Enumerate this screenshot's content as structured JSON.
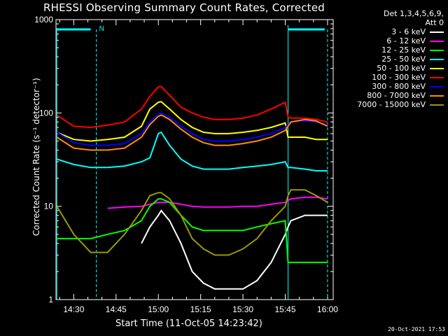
{
  "title": "RHESSI Observing Summary Count Rates, Corrected",
  "ylabel": "Corrected Count Rate (s⁻¹ detector⁻¹)",
  "xlabel": "Start Time (11-Oct-05 14:23:42)",
  "footer": "20-Oct-2021 17:53",
  "legend": {
    "header1": "Det 1,3,4,5,6,9,",
    "header2": "Att 0",
    "items": [
      {
        "label": "3 - 6 keV",
        "color": "#ffffff"
      },
      {
        "label": "6 - 12 keV",
        "color": "#ff00ff"
      },
      {
        "label": "12 - 25 keV",
        "color": "#00ff00"
      },
      {
        "label": "25 - 50 keV",
        "color": "#00ffff"
      },
      {
        "label": "50 - 100 keV",
        "color": "#ffff00"
      },
      {
        "label": "100 - 300 keV",
        "color": "#ff0000"
      },
      {
        "label": "300 - 800 keV",
        "color": "#0000ff"
      },
      {
        "label": "800 - 7000 keV",
        "color": "#ff8c00"
      },
      {
        "label": "7000 - 15000 keV",
        "color": "#999900"
      }
    ]
  },
  "annotation": "N",
  "chart_data": {
    "type": "line",
    "title": "RHESSI Observing Summary Count Rates, Corrected",
    "xlabel": "Start Time (11-Oct-05 14:23:42)",
    "ylabel": "Corrected Count Rate (s⁻¹ detector⁻¹)",
    "yscale": "log",
    "ylim": [
      1,
      1000
    ],
    "xlim": [
      "14:23:42",
      "16:02"
    ],
    "x_ticks": [
      "14:30",
      "14:45",
      "15:00",
      "15:15",
      "15:30",
      "15:45",
      "16:00"
    ],
    "y_ticks": [
      "1",
      "10",
      "100",
      "1000"
    ],
    "x": [
      "14:24",
      "14:30",
      "14:36",
      "14:42",
      "14:48",
      "14:54",
      "14:57",
      "15:00",
      "15:01",
      "15:04",
      "15:08",
      "15:12",
      "15:16",
      "15:20",
      "15:25",
      "15:30",
      "15:35",
      "15:40",
      "15:45",
      "15:46",
      "15:47",
      "15:52",
      "15:56",
      "16:00"
    ],
    "series": [
      {
        "name": "3 - 6 keV",
        "color": "#ffffff",
        "values": [
          null,
          null,
          null,
          null,
          null,
          4,
          6,
          8,
          9,
          7,
          4,
          2,
          1.5,
          1.3,
          1.3,
          1.3,
          1.6,
          2.5,
          5,
          6,
          7,
          8,
          8,
          8
        ]
      },
      {
        "name": "6 - 12 keV",
        "color": "#ff00ff",
        "values": [
          null,
          null,
          null,
          9.5,
          9.8,
          10,
          10.5,
          11,
          11,
          11,
          10.5,
          10,
          9.8,
          9.8,
          9.8,
          10,
          10,
          10.5,
          11,
          11.5,
          12,
          12.5,
          12.5,
          12
        ]
      },
      {
        "name": "12 - 25 keV",
        "color": "#00ff00",
        "values": [
          4.5,
          4.5,
          4.5,
          5,
          5.5,
          7,
          10,
          12,
          12,
          11,
          8,
          6,
          5.5,
          5.5,
          5.5,
          5.5,
          6,
          6.5,
          7,
          2.5,
          2.5,
          2.5,
          2.5,
          2.5
        ]
      },
      {
        "name": "25 - 50 keV",
        "color": "#00ffff",
        "values": [
          32,
          28,
          26,
          26,
          27,
          30,
          33,
          60,
          62,
          45,
          32,
          27,
          25,
          25,
          25,
          26,
          27,
          28,
          30,
          26,
          26,
          25,
          24,
          24
        ]
      },
      {
        "name": "50 - 100 keV",
        "color": "#ffff00",
        "values": [
          62,
          52,
          50,
          52,
          55,
          72,
          110,
          130,
          132,
          110,
          85,
          70,
          62,
          60,
          60,
          62,
          65,
          70,
          78,
          55,
          55,
          55,
          52,
          52
        ]
      },
      {
        "name": "100 - 300 keV",
        "color": "#ff0000",
        "values": [
          95,
          72,
          70,
          74,
          80,
          110,
          150,
          190,
          192,
          155,
          115,
          100,
          90,
          85,
          85,
          88,
          95,
          110,
          130,
          90,
          88,
          88,
          85,
          80
        ]
      },
      {
        "name": "300 - 800 keV",
        "color": "#0000ff",
        "values": [
          62,
          48,
          45,
          45,
          47,
          60,
          80,
          98,
          100,
          90,
          72,
          60,
          52,
          50,
          50,
          52,
          55,
          60,
          70,
          75,
          80,
          82,
          80,
          75
        ]
      },
      {
        "name": "800 - 7000 keV",
        "color": "#ff8c00",
        "values": [
          55,
          42,
          40,
          40,
          42,
          55,
          75,
          92,
          95,
          85,
          67,
          55,
          48,
          45,
          45,
          47,
          50,
          55,
          65,
          72,
          80,
          85,
          82,
          72
        ]
      },
      {
        "name": "7000 - 15000 keV",
        "color": "#999900",
        "values": [
          10,
          5,
          3.2,
          3.2,
          5,
          9,
          13,
          14,
          14,
          12,
          8,
          4.5,
          3.5,
          3,
          3,
          3.5,
          4.5,
          7,
          10,
          13,
          15,
          15,
          13,
          11
        ]
      }
    ]
  }
}
